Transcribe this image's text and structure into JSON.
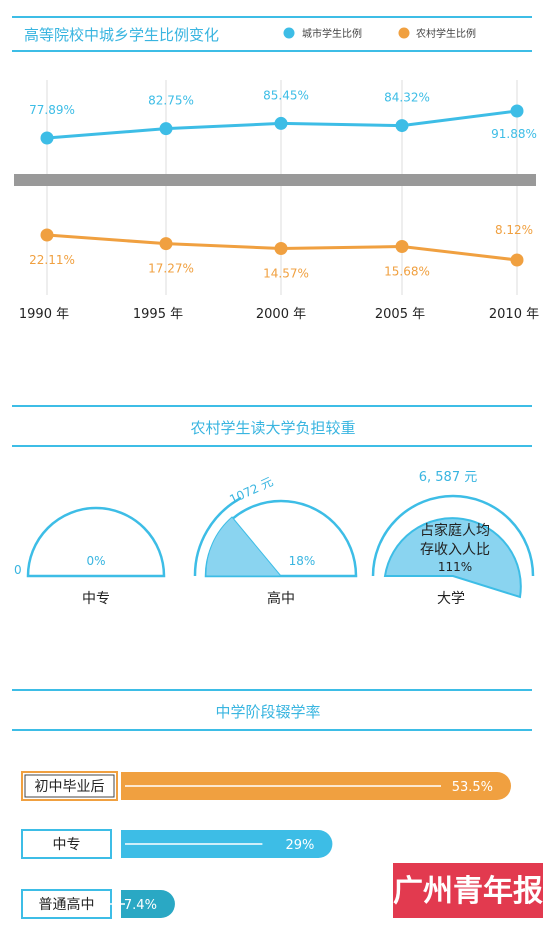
{
  "colors": {
    "urban": "#3dbde6",
    "rural": "#f0a040",
    "accent_teal": "#2aa8c4",
    "divider_gray": "#999999",
    "brand_red": "#e23a4f",
    "text_blue": "#39b5e0",
    "text_orange": "#f0a040"
  },
  "section1": {
    "title": "高等院校中城乡学生比例变化",
    "legend_urban": "城市学生比例",
    "legend_rural": "农村学生比例"
  },
  "section2": {
    "title": "农村学生读大学负担较重",
    "left_axis_label": "0",
    "gauge_labels": [
      "中专",
      "高中",
      "大学"
    ],
    "gauge_costs": [
      "",
      "1072 元",
      "6, 587 元"
    ],
    "gauge_percents": [
      "0%",
      "18%",
      "111%"
    ],
    "gauge_caption_line1": "占家庭人均",
    "gauge_caption_line2": "存收入人比"
  },
  "section3": {
    "title": "中学阶段辍学率",
    "labels": [
      "初中毕业后",
      "中专",
      "普通高中"
    ],
    "values_text": [
      "53.5%",
      "29%",
      "7.4%"
    ]
  },
  "brand": "广州青年报",
  "chart_data": [
    {
      "type": "line",
      "title": "高等院校中城乡学生比例变化",
      "categories": [
        "1990 年",
        "1995 年",
        "2000 年",
        "2005 年",
        "2010 年"
      ],
      "series": [
        {
          "name": "城市学生比例",
          "values": [
            77.89,
            82.75,
            85.45,
            84.32,
            91.88
          ],
          "labels": [
            "77.89%",
            "82.75%",
            "85.45%",
            "84.32%",
            "91.88%"
          ]
        },
        {
          "name": "农村学生比例",
          "values": [
            22.11,
            17.27,
            14.57,
            15.68,
            8.12
          ],
          "labels": [
            "22.11%",
            "17.27%",
            "14.57%",
            "15.68%",
            "8.12%"
          ]
        }
      ],
      "legend": "top-right",
      "grid": false
    },
    {
      "type": "pie",
      "title": "农村学生读大学负担较重",
      "categories": [
        "中专",
        "高中",
        "大学"
      ],
      "values": [
        0,
        18,
        111
      ],
      "annotations": [
        "",
        "1072 元",
        "6, 587 元"
      ]
    },
    {
      "type": "bar",
      "title": "中学阶段辍学率",
      "categories": [
        "初中毕业后",
        "中专",
        "普通高中"
      ],
      "values": [
        53.5,
        29,
        7.4
      ]
    }
  ]
}
